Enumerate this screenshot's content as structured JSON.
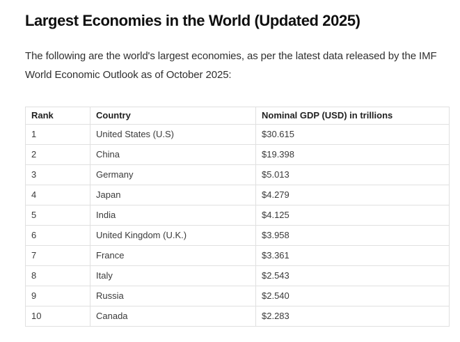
{
  "article": {
    "title": "Largest Economies in the World (Updated 2025)",
    "intro": "The following are the world's largest economies, as per the latest data released by the IMF World Economic Outlook as of October 2025:"
  },
  "table": {
    "columns": [
      "Rank",
      "Country",
      "Nominal GDP (USD) in trillions"
    ],
    "rows": [
      {
        "rank": "1",
        "country": "United States (U.S)",
        "gdp": "$30.615"
      },
      {
        "rank": "2",
        "country": "China",
        "gdp": "$19.398"
      },
      {
        "rank": "3",
        "country": "Germany",
        "gdp": "$5.013"
      },
      {
        "rank": "4",
        "country": "Japan",
        "gdp": "$4.279"
      },
      {
        "rank": "5",
        "country": "India",
        "gdp": "$4.125"
      },
      {
        "rank": "6",
        "country": "United Kingdom (U.K.)",
        "gdp": "$3.958"
      },
      {
        "rank": "7",
        "country": "France",
        "gdp": "$3.361"
      },
      {
        "rank": "8",
        "country": "Italy",
        "gdp": "$2.543"
      },
      {
        "rank": "9",
        "country": "Russia",
        "gdp": "$2.540"
      },
      {
        "rank": "10",
        "country": "Canada",
        "gdp": "$2.283"
      }
    ]
  },
  "colors": {
    "background": "#ffffff",
    "heading_text": "#0f0f0f",
    "body_text": "#2f2f2f",
    "cell_text": "#3a3a3a",
    "table_border": "#e0e0e0"
  }
}
